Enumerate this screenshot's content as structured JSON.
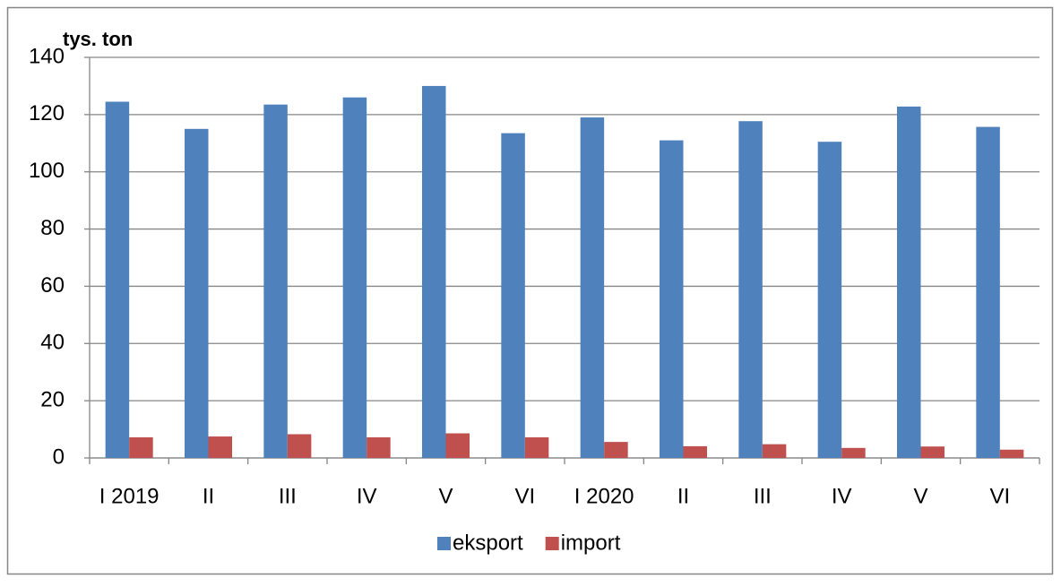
{
  "chart_data": {
    "type": "bar",
    "y_label": "tys. ton",
    "categories": [
      "I 2019",
      "II",
      "III",
      "IV",
      "V",
      "VI",
      "I 2020",
      "II",
      "III",
      "IV",
      "V",
      "VI"
    ],
    "series": [
      {
        "name": "eksport",
        "color": "#4f81bd",
        "values": [
          124.5,
          115,
          123.5,
          126,
          130,
          113.5,
          119,
          111,
          117.7,
          110.5,
          122.8,
          115.7
        ]
      },
      {
        "name": "import",
        "color": "#c0504d",
        "values": [
          7.2,
          7.5,
          8.3,
          7.2,
          8.6,
          7.2,
          5.6,
          4.1,
          4.8,
          3.5,
          4.0,
          2.9
        ]
      }
    ],
    "ylim": [
      0,
      140
    ],
    "yticks": [
      0,
      20,
      40,
      60,
      80,
      100,
      120,
      140
    ],
    "grid": true,
    "legend": "bottom"
  }
}
